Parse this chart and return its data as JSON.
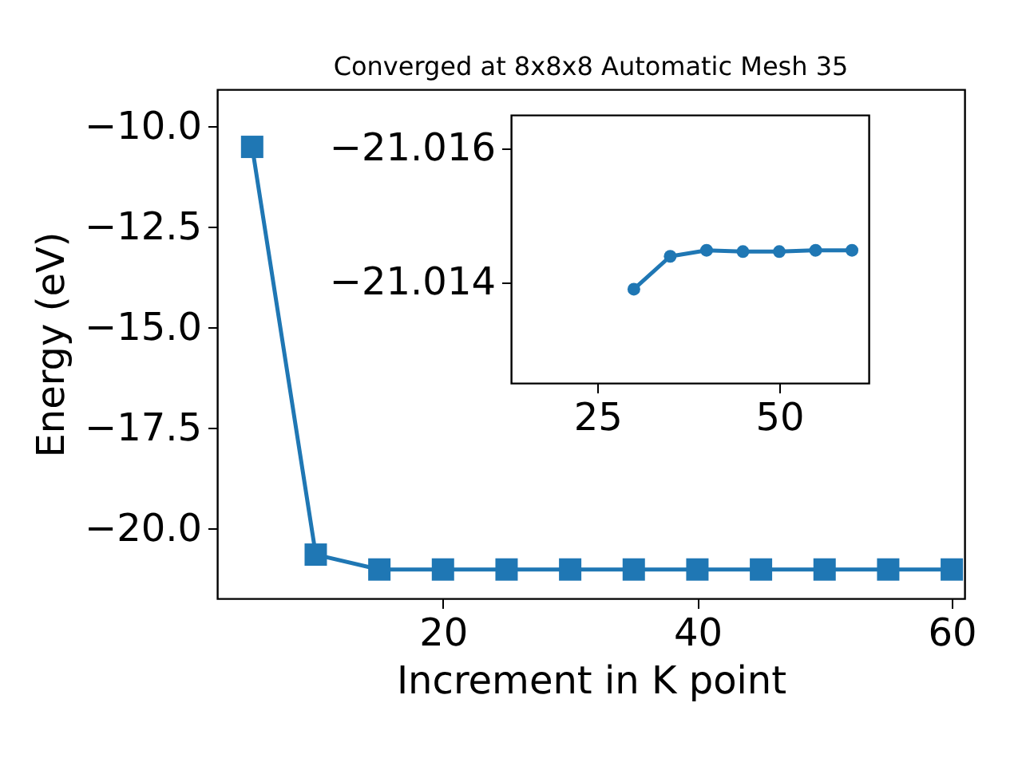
{
  "chart_data": [
    {
      "type": "line",
      "title": "Converged at 8x8x8 Automatic Mesh 35",
      "xlabel": "Increment in K point",
      "ylabel": "Energy (eV)",
      "x": [
        5,
        10,
        15,
        20,
        25,
        30,
        35,
        40,
        45,
        50,
        55,
        60
      ],
      "series": [
        {
          "color": "#1f77b4",
          "values": [
            -10.5,
            -20.64,
            -21.01,
            -21.01,
            -21.01,
            -21.01,
            -21.01,
            -21.01,
            -21.01,
            -21.01,
            -21.01,
            -21.01
          ]
        }
      ],
      "xlim": [
        2.25,
        61
      ],
      "ylim": [
        -21.73,
        -9.07
      ],
      "xticks": [
        20,
        40,
        60
      ],
      "yticks": [
        {
          "value": -10,
          "label": "−10.0"
        },
        {
          "value": -12.5,
          "label": "−12.5"
        },
        {
          "value": -15,
          "label": "−15.0"
        },
        {
          "value": -17.5,
          "label": "−17.5"
        },
        {
          "value": -20,
          "label": "−20.0"
        }
      ],
      "marker": "square",
      "grid": false
    },
    {
      "type": "line",
      "x": [
        30,
        35,
        40,
        45,
        50,
        55,
        60
      ],
      "series": [
        {
          "color": "#1f77b4",
          "values": [
            -21.0139,
            -21.01439,
            -21.01448,
            -21.01446,
            -21.01446,
            -21.01448,
            -21.01448
          ]
        }
      ],
      "xlim": [
        13.1,
        62.3
      ],
      "ylim": [
        -21.0125,
        -21.0165
      ],
      "xticks": [
        25,
        50
      ],
      "yticks": [
        {
          "value": -21.016,
          "label": "−21.016"
        },
        {
          "value": -21.014,
          "label": "−21.014"
        }
      ],
      "marker": "circle",
      "grid": false
    }
  ]
}
